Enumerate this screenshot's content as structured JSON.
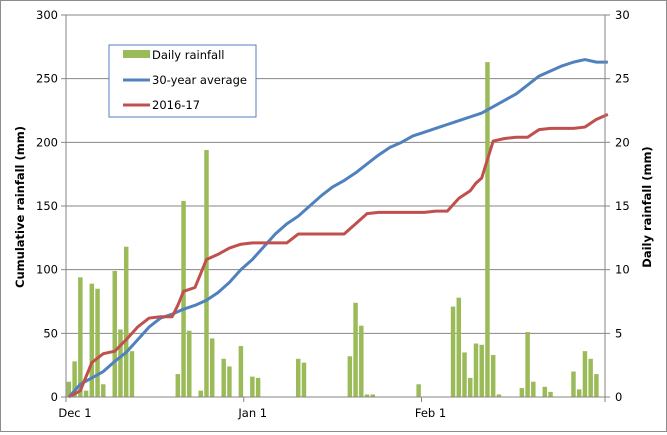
{
  "chart_data": {
    "type": "bar+line",
    "title": "",
    "xlabel": "",
    "ylabel": "Cumulative rainfall (mm)",
    "y2label": "Daily rainfall (mm)",
    "ylim": [
      0,
      300
    ],
    "y2lim": [
      0,
      30
    ],
    "yticks": [
      0,
      50,
      100,
      150,
      200,
      250,
      300
    ],
    "y2ticks": [
      0,
      5,
      10,
      15,
      20,
      25,
      30
    ],
    "xticks": [
      {
        "day": 0,
        "label": "Dec 1"
      },
      {
        "day": 31,
        "label": "Jan 1"
      },
      {
        "day": 62,
        "label": "Feb 1"
      }
    ],
    "x_range_days": [
      0,
      94
    ],
    "grid": "horizontal",
    "legend": {
      "position": "upper-left-inside",
      "entries": [
        "Daily rainfall",
        "30-year average",
        "2016-17"
      ]
    },
    "colors": {
      "bars": "#9bbb59",
      "avg": "#4f81bd",
      "season": "#c0504d",
      "grid": "#868686"
    },
    "series": [
      {
        "name": "Daily rainfall",
        "type": "bar",
        "axis": "right",
        "days": [
          0,
          1,
          2,
          3,
          4,
          5,
          6,
          8,
          9,
          10,
          11,
          19,
          20,
          21,
          23,
          24,
          25,
          27,
          28,
          30,
          32,
          33,
          40,
          41,
          49,
          50,
          51,
          52,
          53,
          61,
          67,
          68,
          69,
          70,
          71,
          72,
          73,
          74,
          75,
          76,
          79,
          80,
          81,
          83,
          84,
          88,
          89,
          90,
          91,
          92
        ],
        "values": [
          1.2,
          2.8,
          9.4,
          0.5,
          8.9,
          8.5,
          1.0,
          9.9,
          5.3,
          11.8,
          3.6,
          1.8,
          15.4,
          5.2,
          0.5,
          19.4,
          4.6,
          3.0,
          2.4,
          4.0,
          1.6,
          1.5,
          3.0,
          2.7,
          3.2,
          7.4,
          5.6,
          0.2,
          0.2,
          1.0,
          7.1,
          7.8,
          3.5,
          1.5,
          4.2,
          4.1,
          26.3,
          3.3,
          0.2,
          0.0,
          0.7,
          5.1,
          1.2,
          0.8,
          0.4,
          2.0,
          0.6,
          3.6,
          3.0,
          1.8
        ]
      },
      {
        "name": "30-year average",
        "type": "line",
        "axis": "left",
        "days": [
          0,
          2,
          4,
          6,
          8,
          10,
          12,
          14,
          16,
          18,
          20,
          22,
          24,
          26,
          28,
          30,
          32,
          34,
          36,
          38,
          40,
          42,
          44,
          46,
          48,
          50,
          52,
          54,
          56,
          58,
          60,
          62,
          64,
          66,
          68,
          70,
          72,
          74,
          76,
          78,
          80,
          82,
          84,
          86,
          88,
          90,
          92,
          94
        ],
        "values": [
          0,
          10,
          15,
          20,
          28,
          35,
          45,
          55,
          62,
          65,
          69,
          72,
          76,
          82,
          90,
          100,
          108,
          118,
          128,
          136,
          142,
          150,
          158,
          165,
          170,
          176,
          183,
          190,
          196,
          200,
          205,
          208,
          211,
          214,
          217,
          220,
          223,
          228,
          233,
          238,
          245,
          252,
          256,
          260,
          263,
          265,
          263,
          263
        ]
      },
      {
        "name": "2016-17",
        "type": "line",
        "axis": "left",
        "days": [
          0,
          2,
          4,
          6,
          8,
          10,
          12,
          14,
          16,
          18,
          19,
          20,
          22,
          24,
          26,
          28,
          30,
          32,
          34,
          36,
          38,
          40,
          42,
          44,
          46,
          48,
          50,
          52,
          54,
          56,
          58,
          60,
          62,
          64,
          66,
          68,
          70,
          71,
          72,
          74,
          76,
          78,
          80,
          82,
          84,
          86,
          88,
          90,
          92,
          94
        ],
        "values": [
          0,
          5,
          27,
          34,
          36,
          45,
          55,
          62,
          63,
          63,
          72,
          83,
          86,
          108,
          112,
          117,
          120,
          121,
          121,
          121,
          121,
          128,
          128,
          128,
          128,
          128,
          136,
          144,
          145,
          145,
          145,
          145,
          145,
          146,
          146,
          156,
          162,
          168,
          172,
          201,
          203,
          204,
          204,
          210,
          211,
          211,
          211,
          212,
          218,
          222
        ]
      }
    ]
  }
}
